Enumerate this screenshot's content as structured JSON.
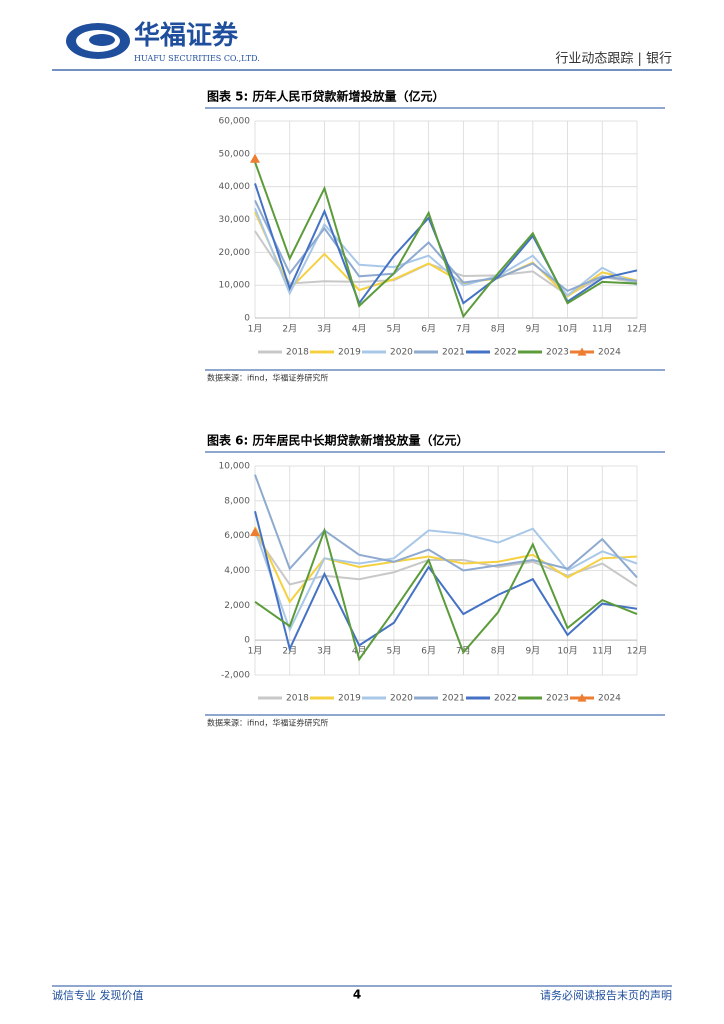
{
  "header": {
    "company": "华福证券",
    "company_en": "HUAFU SECURITIES CO.,LTD.",
    "section": "行业动态跟踪 | 银行"
  },
  "footer": {
    "left": "诚信专业  发现价值",
    "page": "4",
    "right": "请务必阅读报告末页的声明"
  },
  "chart_data": [
    {
      "type": "line",
      "title": "图表 5:  历年人民币贷款新增投放量（亿元）",
      "source": "数据来源：ifind，华福证券研究所",
      "categories": [
        "1月",
        "2月",
        "3月",
        "4月",
        "5月",
        "6月",
        "7月",
        "8月",
        "9月",
        "10月",
        "11月",
        "12月"
      ],
      "ylim": [
        0,
        60000
      ],
      "yticks": [
        0,
        {
          "value": 10000,
          "label": "10,000"
        },
        {
          "value": 20000,
          "label": "20,000"
        },
        {
          "value": 30000,
          "label": "30,000"
        },
        {
          "value": 40000,
          "label": "40,000"
        },
        {
          "value": 50000,
          "label": "50,000"
        },
        {
          "value": 60000,
          "label": "60,000"
        }
      ],
      "grid": true,
      "series": [
        {
          "name": "2018",
          "color": "#c8c8c8",
          "values": [
            26500,
            10500,
            11200,
            11000,
            11500,
            16500,
            12800,
            13000,
            14200,
            6900,
            12500,
            10800
          ]
        },
        {
          "name": "2019",
          "color": "#f5d142",
          "values": [
            32300,
            8858,
            19500,
            8500,
            11800,
            16600,
            10600,
            12100,
            16900,
            6613,
            13900,
            11400
          ]
        },
        {
          "name": "2020",
          "color": "#a9c8e8",
          "values": [
            33400,
            7500,
            28500,
            16200,
            15500,
            19000,
            9927,
            12800,
            19000,
            6898,
            15300,
            10000
          ]
        },
        {
          "name": "2021",
          "color": "#8eaad0",
          "values": [
            35800,
            13600,
            27300,
            12700,
            13500,
            23000,
            10800,
            12200,
            16600,
            8262,
            12700,
            11300
          ]
        },
        {
          "name": "2022",
          "color": "#4472c4",
          "values": [
            41000,
            9000,
            32500,
            4500,
            18900,
            30500,
            4500,
            12500,
            25000,
            5000,
            12100,
            14500
          ]
        },
        {
          "name": "2023",
          "color": "#5b9b3a",
          "values": [
            47500,
            18100,
            39500,
            3700,
            13600,
            32000,
            500,
            13600,
            25800,
            4500,
            11000,
            10500
          ]
        },
        {
          "name": "2024",
          "color": "#ed7d31",
          "marker": "triangle",
          "values": [
            48500,
            null,
            null,
            null,
            null,
            null,
            null,
            null,
            null,
            null,
            null,
            null
          ]
        }
      ]
    },
    {
      "type": "line",
      "title": "图表 6:  历年居民中长期贷款新增投放量（亿元）",
      "source": "数据来源：ifind，华福证券研究所",
      "categories": [
        "1月",
        "2月",
        "3月",
        "4月",
        "5月",
        "6月",
        "7月",
        "8月",
        "9月",
        "10月",
        "11月",
        "12月"
      ],
      "ylim": [
        -2000,
        10000
      ],
      "yticks": [
        {
          "value": -2000,
          "label": "-2,000"
        },
        0,
        {
          "value": 2000,
          "label": "2,000"
        },
        {
          "value": 4000,
          "label": "4,000"
        },
        {
          "value": 6000,
          "label": "6,000"
        },
        {
          "value": 8000,
          "label": "8,000"
        },
        {
          "value": 10000,
          "label": "10,000"
        }
      ],
      "grid": true,
      "series": [
        {
          "name": "2018",
          "color": "#c8c8c8",
          "values": [
            6100,
            3200,
            3700,
            3500,
            3900,
            4600,
            4600,
            4200,
            4500,
            3700,
            4400,
            3100
          ]
        },
        {
          "name": "2019",
          "color": "#f5d142",
          "values": [
            6500,
            2200,
            4700,
            4200,
            4500,
            4800,
            4400,
            4500,
            4900,
            3600,
            4700,
            4800
          ]
        },
        {
          "name": "2020",
          "color": "#a9c8e8",
          "values": [
            6300,
            600,
            4700,
            4400,
            4700,
            6300,
            6100,
            5600,
            6400,
            4000,
            5100,
            4400
          ]
        },
        {
          "name": "2021",
          "color": "#8eaad0",
          "values": [
            9500,
            4100,
            6300,
            4900,
            4500,
            5200,
            4000,
            4300,
            4600,
            4100,
            5800,
            3600
          ]
        },
        {
          "name": "2022",
          "color": "#4472c4",
          "values": [
            7400,
            -500,
            3800,
            -300,
            1000,
            4200,
            1500,
            2600,
            3500,
            300,
            2100,
            1800
          ]
        },
        {
          "name": "2023",
          "color": "#5b9b3a",
          "values": [
            2200,
            800,
            6300,
            -1100,
            1700,
            4600,
            -700,
            1600,
            5500,
            700,
            2300,
            1500
          ]
        },
        {
          "name": "2024",
          "color": "#ed7d31",
          "marker": "triangle",
          "values": [
            6200,
            null,
            null,
            null,
            null,
            null,
            null,
            null,
            null,
            null,
            null,
            null
          ]
        }
      ]
    }
  ]
}
